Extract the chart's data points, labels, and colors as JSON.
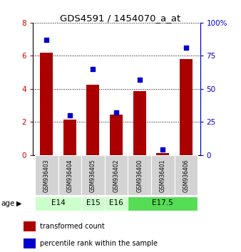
{
  "title": "GDS4591 / 1454070_a_at",
  "samples": [
    "GSM936403",
    "GSM936404",
    "GSM936405",
    "GSM936402",
    "GSM936400",
    "GSM936401",
    "GSM936406"
  ],
  "transformed_counts": [
    6.2,
    2.15,
    4.25,
    2.45,
    3.85,
    0.1,
    5.8
  ],
  "percentile_ranks": [
    87,
    30,
    65,
    32,
    57,
    4,
    81
  ],
  "age_spans": [
    {
      "label": "E14",
      "start": 0,
      "end": 1,
      "color": "#ccffcc"
    },
    {
      "label": "E15",
      "start": 2,
      "end": 2,
      "color": "#ccffcc"
    },
    {
      "label": "E16",
      "start": 3,
      "end": 3,
      "color": "#ccffcc"
    },
    {
      "label": "E17.5",
      "start": 4,
      "end": 6,
      "color": "#55dd55"
    }
  ],
  "bar_color": "#aa0000",
  "dot_color": "#0000cc",
  "left_ylim": [
    0,
    8
  ],
  "right_ylim": [
    0,
    100
  ],
  "left_yticks": [
    0,
    2,
    4,
    6,
    8
  ],
  "right_yticks": [
    0,
    25,
    50,
    75,
    100
  ],
  "right_yticklabels": [
    "0",
    "25",
    "50",
    "75",
    "100%"
  ],
  "left_tick_color": "#cc0000",
  "right_tick_color": "#0000cc",
  "sample_box_color": "#d3d3d3",
  "legend_items": [
    {
      "color": "#aa0000",
      "label": "transformed count"
    },
    {
      "color": "#0000cc",
      "label": "percentile rank within the sample"
    }
  ]
}
